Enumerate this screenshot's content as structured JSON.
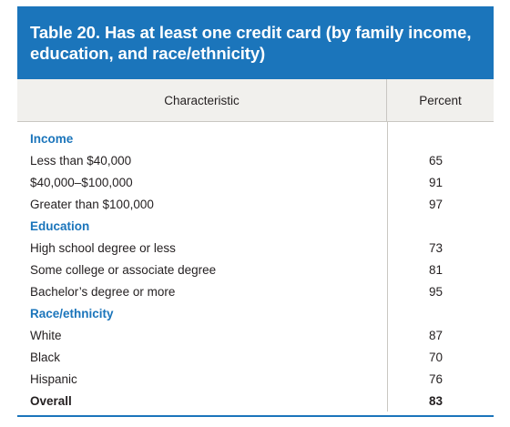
{
  "title": "Table 20. Has at least one credit card (by family income, education, and race/ethnicity)",
  "columns": {
    "characteristic": "Characteristic",
    "percent": "Percent"
  },
  "sections": [
    {
      "heading": "Income",
      "rows": [
        {
          "label": "Less than $40,000",
          "value": "65"
        },
        {
          "label": "$40,000–$100,000",
          "value": "91"
        },
        {
          "label": "Greater than $100,000",
          "value": "97"
        }
      ]
    },
    {
      "heading": "Education",
      "rows": [
        {
          "label": "High school degree or less",
          "value": "73"
        },
        {
          "label": "Some college or associate degree",
          "value": "81"
        },
        {
          "label": "Bachelor’s degree or more",
          "value": "95"
        }
      ]
    },
    {
      "heading": "Race/ethnicity",
      "rows": [
        {
          "label": "White",
          "value": "87"
        },
        {
          "label": "Black",
          "value": "70"
        },
        {
          "label": "Hispanic",
          "value": "76"
        }
      ]
    }
  ],
  "overall": {
    "label": "Overall",
    "value": "83"
  },
  "colors": {
    "accent": "#1b75bb",
    "header_bg": "#f1f0ed",
    "rule": "#c9c7c2"
  }
}
